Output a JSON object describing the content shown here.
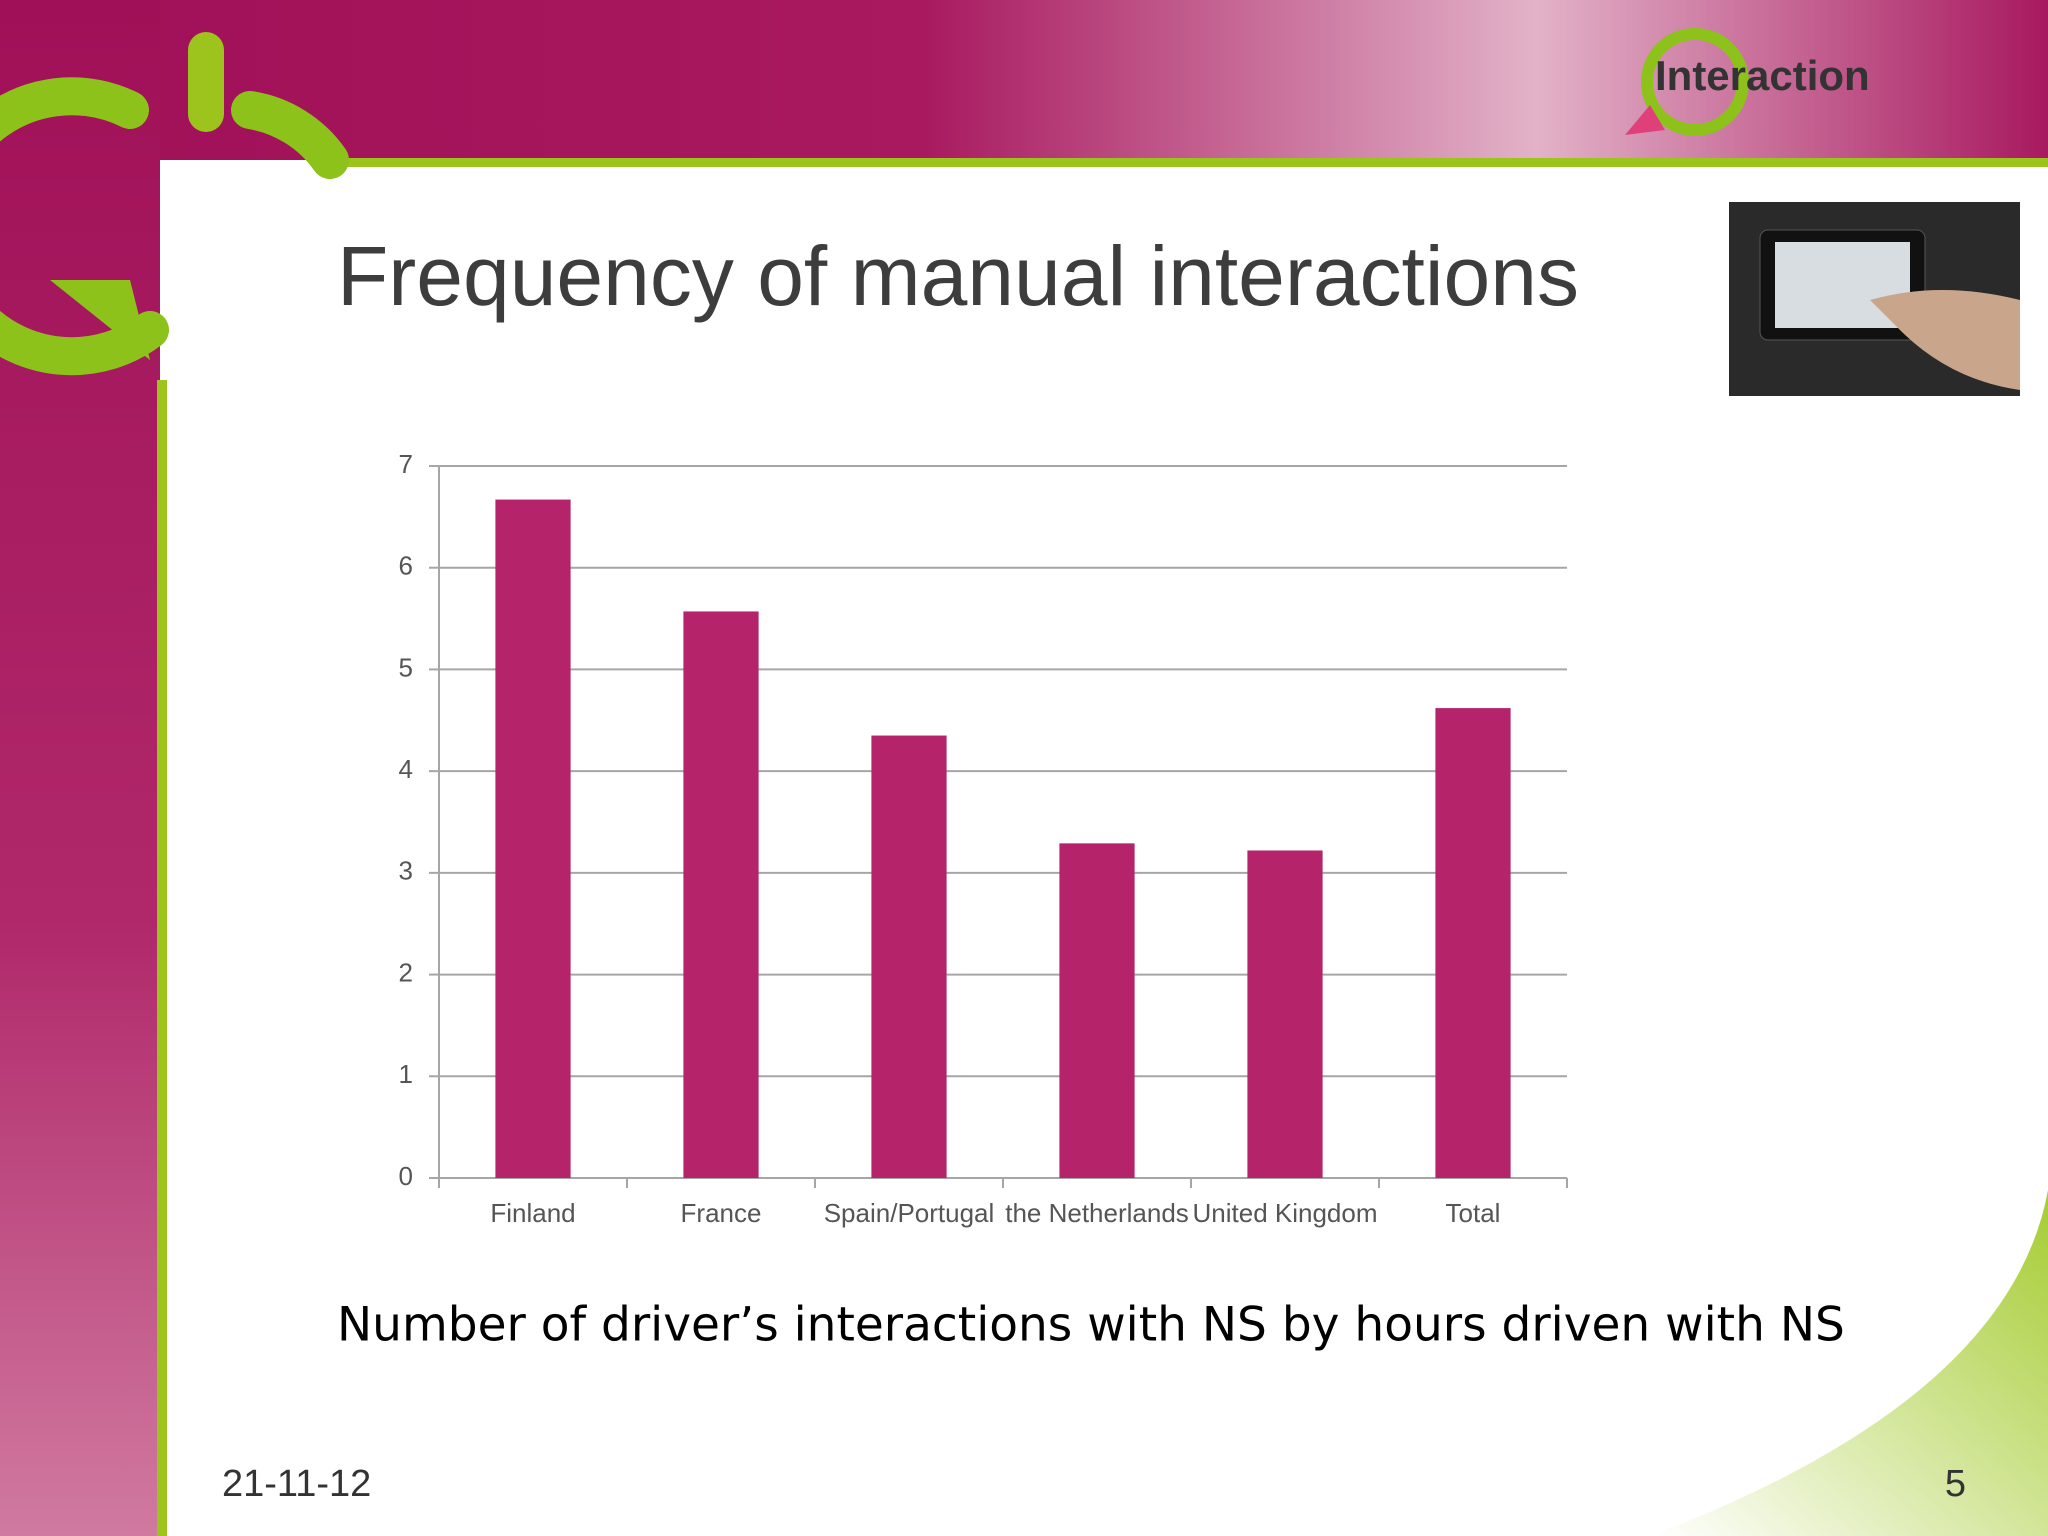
{
  "title": "Frequency of manual interactions",
  "logo_text": "Interaction",
  "caption": "Number of driver’s interactions with NS by hours driven with NS",
  "date": "21-11-12",
  "page_number": "5",
  "chart_data": {
    "type": "bar",
    "categories": [
      "Finland",
      "France",
      "Spain/Portugal",
      "the Netherlands",
      "United Kingdom",
      "Total"
    ],
    "values": [
      6.67,
      5.57,
      4.35,
      3.29,
      3.22,
      4.62
    ],
    "color": "#b5236a",
    "ylim": [
      0,
      7
    ],
    "yticks": [
      0,
      1,
      2,
      3,
      4,
      5,
      6,
      7
    ],
    "grid": true
  }
}
